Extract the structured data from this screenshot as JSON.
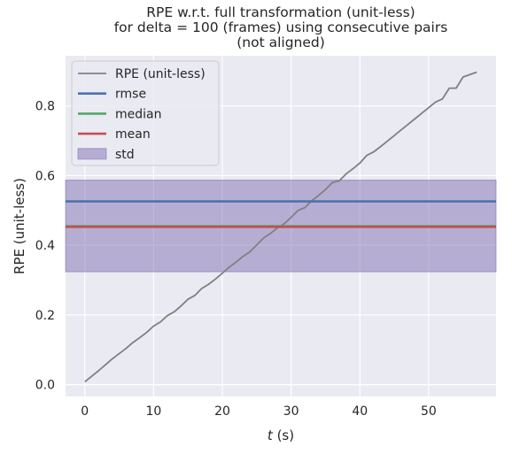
{
  "chart_data": {
    "type": "line",
    "title_lines": [
      "RPE w.r.t. full transformation (unit-less)",
      "for delta = 100 (frames) using consecutive pairs",
      "(not aligned)"
    ],
    "xlabel_italic": "t",
    "xlabel_rest": " (s)",
    "ylabel": "RPE (unit-less)",
    "xlim": [
      -2.8,
      59.8
    ],
    "ylim": [
      -0.034,
      0.944
    ],
    "xticks": [
      0,
      10,
      20,
      30,
      40,
      50
    ],
    "yticks": [
      0.0,
      0.2,
      0.4,
      0.6,
      0.8
    ],
    "ytick_labels": [
      "0.0",
      "0.2",
      "0.4",
      "0.6",
      "0.8"
    ],
    "grid": true,
    "legend": {
      "position": "top-left",
      "items": [
        {
          "label": "RPE (unit-less)",
          "kind": "line",
          "color": "#808080"
        },
        {
          "label": "rmse",
          "kind": "line",
          "color": "#4c72b0"
        },
        {
          "label": "median",
          "kind": "line",
          "color": "#55a868"
        },
        {
          "label": "mean",
          "kind": "line",
          "color": "#c44e52"
        },
        {
          "label": "std",
          "kind": "patch",
          "color": "#8172b2"
        }
      ]
    },
    "series": [
      {
        "name": "RPE (unit-less)",
        "color": "#808080",
        "x": [
          0,
          1,
          2,
          3,
          4,
          5,
          6,
          7,
          8,
          9,
          10,
          11,
          12,
          13,
          14,
          15,
          16,
          17,
          18,
          19,
          20,
          21,
          22,
          23,
          24,
          25,
          26,
          27,
          28,
          29,
          30,
          31,
          32,
          33,
          34,
          35,
          36,
          37,
          38,
          39,
          40,
          41,
          42,
          43,
          44,
          45,
          46,
          47,
          48,
          49,
          50,
          51,
          52,
          53,
          54,
          55,
          56,
          57
        ],
        "values": [
          0.008,
          0.024,
          0.04,
          0.057,
          0.074,
          0.089,
          0.104,
          0.121,
          0.135,
          0.15,
          0.168,
          0.18,
          0.198,
          0.209,
          0.226,
          0.245,
          0.256,
          0.276,
          0.288,
          0.303,
          0.32,
          0.337,
          0.352,
          0.368,
          0.381,
          0.401,
          0.421,
          0.434,
          0.45,
          0.462,
          0.48,
          0.5,
          0.508,
          0.528,
          0.543,
          0.56,
          0.58,
          0.585,
          0.605,
          0.62,
          0.636,
          0.658,
          0.668,
          0.683,
          0.699,
          0.715,
          0.731,
          0.747,
          0.763,
          0.779,
          0.795,
          0.811,
          0.82,
          0.851,
          0.851,
          0.883,
          0.89,
          0.897
        ]
      }
    ],
    "stats": {
      "rmse": 0.526,
      "median": 0.455,
      "mean": 0.453,
      "std_band": [
        0.324,
        0.587
      ]
    }
  }
}
